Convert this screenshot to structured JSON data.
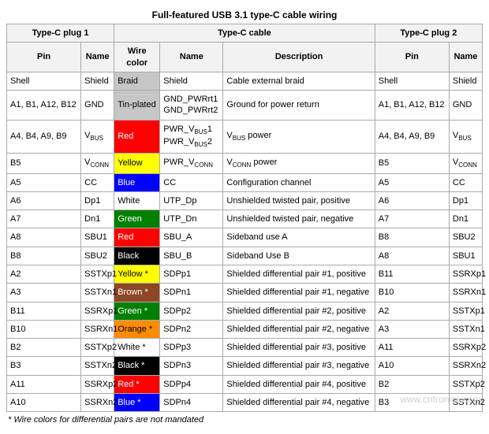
{
  "title": "Full-featured USB 3.1 type-C cable wiring",
  "groups": {
    "plug1": "Type-C plug 1",
    "cable": "Type-C cable",
    "plug2": "Type-C plug 2"
  },
  "headers": {
    "pin": "Pin",
    "name": "Name",
    "wire_color": "Wire color",
    "cable_name": "Name",
    "description": "Description"
  },
  "colors": {
    "braid": {
      "label": "Braid",
      "bg": "#c6c6c6",
      "fg": "#000000"
    },
    "tin": {
      "label": "Tin-plated",
      "bg": "#c6c6c6",
      "fg": "#000000"
    },
    "red": {
      "label": "Red",
      "bg": "#ff0000",
      "fg": "#ffffff"
    },
    "yellow": {
      "label": "Yellow",
      "bg": "#ffff00",
      "fg": "#000000"
    },
    "blue": {
      "label": "Blue",
      "bg": "#0000ff",
      "fg": "#ffffff"
    },
    "white": {
      "label": "White",
      "bg": "#ffffff",
      "fg": "#000000"
    },
    "green": {
      "label": "Green",
      "bg": "#008000",
      "fg": "#ffffff"
    },
    "black": {
      "label": "Black",
      "bg": "#000000",
      "fg": "#ffffff"
    },
    "yellow_s": {
      "label": "Yellow *",
      "bg": "#ffff00",
      "fg": "#000000"
    },
    "brown_s": {
      "label": "Brown *",
      "bg": "#8b4726",
      "fg": "#ffffff"
    },
    "green_s": {
      "label": "Green *",
      "bg": "#008000",
      "fg": "#ffffff"
    },
    "orange_s": {
      "label": "Orange *",
      "bg": "#ff8c00",
      "fg": "#000000"
    },
    "white_s": {
      "label": "White *",
      "bg": "#ffffff",
      "fg": "#000000"
    },
    "black_s": {
      "label": "Black *",
      "bg": "#000000",
      "fg": "#ffffff"
    },
    "red_s": {
      "label": "Red *",
      "bg": "#ff0000",
      "fg": "#ffffff"
    },
    "blue_s": {
      "label": "Blue *",
      "bg": "#0000ff",
      "fg": "#ffffff"
    }
  },
  "rows": [
    {
      "p1_pin": "Shell",
      "p1_name": "Shield",
      "color": "braid",
      "c_name_html": "Shield",
      "desc": "Cable external braid",
      "p2_pin": "Shell",
      "p2_name": "Shield"
    },
    {
      "p1_pin": "A1, B1, A12, B12",
      "p1_name": "GND",
      "color": "tin",
      "c_name_html": "GND_PWRrt1<br>GND_PWRrt2",
      "desc": "Ground for power return",
      "p2_pin": "A1, B1, A12, B12",
      "p2_name": "GND"
    },
    {
      "p1_pin": "A4, B4, A9, B9",
      "p1_name_html": "V<span class='sub'>BUS</span>",
      "color": "red",
      "c_name_html": "PWR_V<span class='sub'>BUS</span>1<br>PWR_V<span class='sub'>BUS</span>2",
      "desc_html": "V<span class='sub'>BUS</span> power",
      "p2_pin": "A4, B4, A9, B9",
      "p2_name_html": "V<span class='sub'>BUS</span>"
    },
    {
      "p1_pin": "B5",
      "p1_name_html": "V<span class='sub'>CONN</span>",
      "color": "yellow",
      "c_name_html": "PWR_V<span class='sub'>CONN</span>",
      "desc_html": "V<span class='sub'>CONN</span> power",
      "p2_pin": "B5",
      "p2_name_html": "V<span class='sub'>CONN</span>"
    },
    {
      "p1_pin": "A5",
      "p1_name": "CC",
      "color": "blue",
      "c_name_html": "CC",
      "desc": "Configuration channel",
      "p2_pin": "A5",
      "p2_name": "CC"
    },
    {
      "p1_pin": "A6",
      "p1_name": "Dp1",
      "color": "white",
      "c_name_html": "UTP_Dp",
      "desc": "Unshielded twisted pair, positive",
      "p2_pin": "A6",
      "p2_name": "Dp1"
    },
    {
      "p1_pin": "A7",
      "p1_name": "Dn1",
      "color": "green",
      "c_name_html": "UTP_Dn",
      "desc": "Unshielded twisted pair, negative",
      "p2_pin": "A7",
      "p2_name": "Dn1"
    },
    {
      "p1_pin": "A8",
      "p1_name": "SBU1",
      "color": "red",
      "c_name_html": "SBU_A",
      "desc": "Sideband use A",
      "p2_pin": "B8",
      "p2_name": "SBU2"
    },
    {
      "p1_pin": "B8",
      "p1_name": "SBU2",
      "color": "black",
      "c_name_html": "SBU_B",
      "desc": "Sideband Use B",
      "p2_pin": "A8",
      "p2_name": "SBU1"
    },
    {
      "p1_pin": "A2",
      "p1_name": "SSTXp1",
      "color": "yellow_s",
      "c_name_html": "SDPp1",
      "desc": "Shielded differential pair #1, positive",
      "p2_pin": "B11",
      "p2_name": "SSRXp1"
    },
    {
      "p1_pin": "A3",
      "p1_name": "SSTXn1",
      "color": "brown_s",
      "c_name_html": "SDPn1",
      "desc": "Shielded differential pair #1, negative",
      "p2_pin": "B10",
      "p2_name": "SSRXn1"
    },
    {
      "p1_pin": "B11",
      "p1_name": "SSRXp1",
      "color": "green_s",
      "c_name_html": "SDPp2",
      "desc": "Shielded differential pair #2, positive",
      "p2_pin": "A2",
      "p2_name": "SSTXp1"
    },
    {
      "p1_pin": "B10",
      "p1_name": "SSRXn1",
      "color": "orange_s",
      "c_name_html": "SDPn2",
      "desc": "Shielded differential pair #2, negative",
      "p2_pin": "A3",
      "p2_name": "SSTXn1"
    },
    {
      "p1_pin": "B2",
      "p1_name": "SSTXp2",
      "color": "white_s",
      "c_name_html": "SDPp3",
      "desc": "Shielded differential pair #3, positive",
      "p2_pin": "A11",
      "p2_name": "SSRXp2"
    },
    {
      "p1_pin": "B3",
      "p1_name": "SSTXn2",
      "color": "black_s",
      "c_name_html": "SDPn3",
      "desc": "Shielded differential pair #3, negative",
      "p2_pin": "A10",
      "p2_name": "SSRXn2"
    },
    {
      "p1_pin": "A11",
      "p1_name": "SSRXp2",
      "color": "red_s",
      "c_name_html": "SDPp4",
      "desc": "Shielded differential pair #4, positive",
      "p2_pin": "B2",
      "p2_name": "SSTXp2"
    },
    {
      "p1_pin": "A10",
      "p1_name": "SSRXn2",
      "color": "blue_s",
      "c_name_html": "SDPn4",
      "desc": "Shielded differential pair #4, negative",
      "p2_pin": "B3",
      "p2_name": "SSTXn2"
    }
  ],
  "footnote": "* Wire colors for differential pairs are not mandated",
  "watermark": "www.cntronics.com"
}
